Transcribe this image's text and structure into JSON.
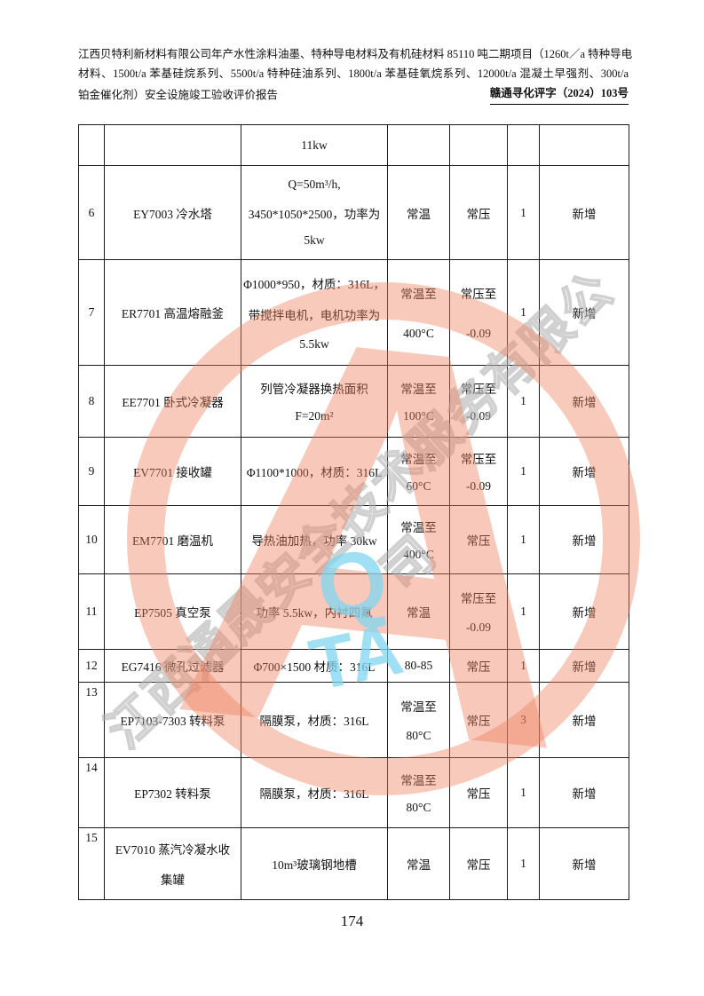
{
  "header": {
    "line1": "江西贝特利新材料有限公司年产水性涂料油墨、特种导电材料及有机硅材料 85110 吨二期项目（1260t／a 特种导电",
    "line2": "材料、1500t/a 苯基硅烷系列、5500t/a 特种硅油系列、1800t/a 苯基硅氧烷系列、12000t/a 混凝土早强剂、300t/a",
    "line3_left": "铂金催化剂）安全设施竣工验收评价报告",
    "doc_number": "赣通寻化评字（2024）103号"
  },
  "table": {
    "rows": [
      {
        "num": "",
        "name": [
          ""
        ],
        "spec": [
          "11kw"
        ],
        "temp": [
          ""
        ],
        "pressure": [
          ""
        ],
        "qty": "",
        "status": ""
      },
      {
        "num": "6",
        "name": [
          "EY7003 冷水塔"
        ],
        "spec": [
          "Q=50m³/h,",
          "3450*1050*2500，功率为",
          "5kw"
        ],
        "temp": [
          "常温"
        ],
        "pressure": [
          "常压"
        ],
        "qty": "1",
        "status": "新增"
      },
      {
        "num": "7",
        "name": [
          "ER7701 高温熔融釜"
        ],
        "spec": [
          "Φ1000*950，材质：316L，",
          "带搅拌电机，电机功率为",
          "5.5kw"
        ],
        "temp": [
          "常温至",
          "400°C"
        ],
        "pressure": [
          "常压至",
          "-0.09"
        ],
        "qty": "1",
        "status": "新增"
      },
      {
        "num": "8",
        "name": [
          "EE7701 卧式冷凝器"
        ],
        "spec": [
          "列管冷凝器换热面积",
          "F=20m²"
        ],
        "temp": [
          "常温至",
          "100°C"
        ],
        "pressure": [
          "常压至",
          "-0.09"
        ],
        "qty": "1",
        "status": "新增"
      },
      {
        "num": "9",
        "name": [
          "EV7701 接收罐"
        ],
        "spec": [
          "Φ1100*1000，材质：316L"
        ],
        "temp": [
          "常温至",
          "60°C"
        ],
        "pressure": [
          "常压至",
          "-0.09"
        ],
        "qty": "1",
        "status": "新增"
      },
      {
        "num": "10",
        "name": [
          "EM7701 磨温机"
        ],
        "spec": [
          "导热油加热，功率 30kw"
        ],
        "temp": [
          "常温至",
          "400°C"
        ],
        "pressure": [
          "常压"
        ],
        "qty": "1",
        "status": "新增"
      },
      {
        "num": "11",
        "name": [
          "EP7505 真空泵"
        ],
        "spec": [
          "功率 5.5kw，内衬四氟"
        ],
        "temp": [
          "常温"
        ],
        "pressure": [
          "常压至",
          "-0.09"
        ],
        "qty": "1",
        "status": "新增"
      },
      {
        "num": "12",
        "name": [
          "EG7416 微孔过滤器"
        ],
        "spec": [
          "Φ700×1500 材质：316L"
        ],
        "temp": [
          "80-85"
        ],
        "pressure": [
          "常压"
        ],
        "qty": "1",
        "status": "新增"
      },
      {
        "num": "13",
        "name": [
          "EP7103-7303 转料泵"
        ],
        "spec": [
          "隔膜泵，材质：316L"
        ],
        "temp": [
          "常温至",
          "80°C"
        ],
        "pressure": [
          "常压"
        ],
        "qty": "3",
        "status": "新增"
      },
      {
        "num": "14",
        "name": [
          "EP7302 转料泵"
        ],
        "spec": [
          "隔膜泵，材质：316L"
        ],
        "temp": [
          "常温至",
          "80°C"
        ],
        "pressure": [
          "常压"
        ],
        "qty": "1",
        "status": "新增"
      },
      {
        "num": "15",
        "name": [
          "EV7010 蒸汽冷凝水收",
          "集罐"
        ],
        "spec": [
          "10m³玻璃钢地槽"
        ],
        "temp": [
          "常温"
        ],
        "pressure": [
          "常压"
        ],
        "qty": "1",
        "status": "新增"
      }
    ]
  },
  "watermark": {
    "company_text": "江西通晟安全技术服务有限公司",
    "logo_letter": "A",
    "letter_q": "Q",
    "letters_ta": "TA",
    "ring_color": "#ee805c",
    "cyan_color": "#80d6f0",
    "grey_color": "#b0b0b0"
  },
  "footer": {
    "page_number": "174"
  }
}
